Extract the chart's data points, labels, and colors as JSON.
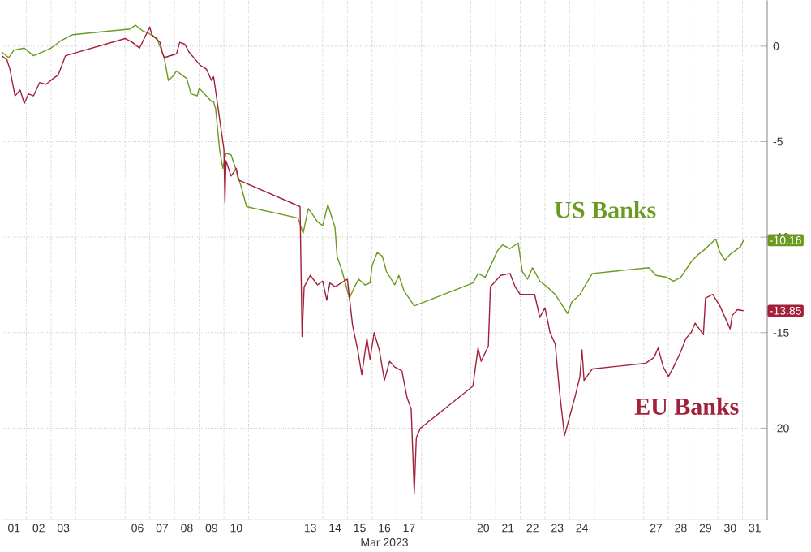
{
  "chart_data": {
    "type": "line",
    "xlabel": "Mar 2023",
    "xlim": [
      "2023-03-01T00:00",
      "2023-04-01T00:00"
    ],
    "ylim": [
      -24.8,
      2.4
    ],
    "xticks": [
      {
        "value": "2023-03-01T12:00",
        "label": "01"
      },
      {
        "value": "2023-03-02T12:00",
        "label": "02"
      },
      {
        "value": "2023-03-03T12:00",
        "label": "03"
      },
      {
        "value": "2023-03-06T12:00",
        "label": "06"
      },
      {
        "value": "2023-03-07T12:00",
        "label": "07"
      },
      {
        "value": "2023-03-08T12:00",
        "label": "08"
      },
      {
        "value": "2023-03-09T12:00",
        "label": "09"
      },
      {
        "value": "2023-03-10T12:00",
        "label": "10"
      },
      {
        "value": "2023-03-13T12:00",
        "label": "13"
      },
      {
        "value": "2023-03-14T12:00",
        "label": "14"
      },
      {
        "value": "2023-03-15T12:00",
        "label": "15"
      },
      {
        "value": "2023-03-16T12:00",
        "label": "16"
      },
      {
        "value": "2023-03-17T12:00",
        "label": "17"
      },
      {
        "value": "2023-03-20T12:00",
        "label": "20"
      },
      {
        "value": "2023-03-21T12:00",
        "label": "21"
      },
      {
        "value": "2023-03-22T12:00",
        "label": "22"
      },
      {
        "value": "2023-03-23T12:00",
        "label": "23"
      },
      {
        "value": "2023-03-24T12:00",
        "label": "24"
      },
      {
        "value": "2023-03-27T12:00",
        "label": "27"
      },
      {
        "value": "2023-03-28T12:00",
        "label": "28"
      },
      {
        "value": "2023-03-29T12:00",
        "label": "29"
      },
      {
        "value": "2023-03-30T12:00",
        "label": "30"
      },
      {
        "value": "2023-03-31T12:00",
        "label": "31"
      },
      {
        "value": "2023-03-02T00:00",
        "label": null
      },
      {
        "value": "2023-03-03T00:00",
        "label": null
      },
      {
        "value": "2023-03-04T00:00",
        "label": null
      },
      {
        "value": "2023-03-06T00:00",
        "label": null
      },
      {
        "value": "2023-03-07T00:00",
        "label": null
      },
      {
        "value": "2023-03-08T00:00",
        "label": null
      },
      {
        "value": "2023-03-09T00:00",
        "label": null
      },
      {
        "value": "2023-03-10T00:00",
        "label": null
      },
      {
        "value": "2023-03-11T00:00",
        "label": null
      },
      {
        "value": "2023-03-13T00:00",
        "label": null
      },
      {
        "value": "2023-03-14T00:00",
        "label": null
      },
      {
        "value": "2023-03-15T00:00",
        "label": null
      },
      {
        "value": "2023-03-16T00:00",
        "label": null
      },
      {
        "value": "2023-03-17T00:00",
        "label": null
      },
      {
        "value": "2023-03-18T00:00",
        "label": null
      },
      {
        "value": "2023-03-20T00:00",
        "label": null
      },
      {
        "value": "2023-03-21T00:00",
        "label": null
      },
      {
        "value": "2023-03-22T00:00",
        "label": null
      },
      {
        "value": "2023-03-23T00:00",
        "label": null
      },
      {
        "value": "2023-03-24T00:00",
        "label": null
      },
      {
        "value": "2023-03-25T00:00",
        "label": null
      },
      {
        "value": "2023-03-27T00:00",
        "label": null
      },
      {
        "value": "2023-03-28T00:00",
        "label": null
      },
      {
        "value": "2023-03-29T00:00",
        "label": null
      },
      {
        "value": "2023-03-30T00:00",
        "label": null
      },
      {
        "value": "2023-03-31T00:00",
        "label": null
      }
    ],
    "yticks": [
      0,
      -5,
      -10,
      -15,
      -20
    ],
    "grid": true,
    "series": [
      {
        "name": "US Banks",
        "color": "#6a9a1f",
        "x": [
          "2023-03-01T00:00",
          "2023-03-01T07:00",
          "2023-03-01T12:00",
          "2023-03-01T22:00",
          "2023-03-02T07:00",
          "2023-03-02T16:00",
          "2023-03-03T00:00",
          "2023-03-03T10:00",
          "2023-03-03T21:00",
          "2023-03-06T05:00",
          "2023-03-06T10:00",
          "2023-03-06T17:00",
          "2023-03-06T22:00",
          "2023-03-07T07:00",
          "2023-03-07T14:00",
          "2023-03-07T18:00",
          "2023-03-07T22:00",
          "2023-03-08T02:00",
          "2023-03-08T12:00",
          "2023-03-08T16:00",
          "2023-03-08T22:00",
          "2023-03-09T00:00",
          "2023-03-09T12:00",
          "2023-03-09T14:00",
          "2023-03-09T16:00",
          "2023-03-09T20:00",
          "2023-03-09T23:00",
          "2023-03-10T02:00",
          "2023-03-10T07:00",
          "2023-03-10T12:00",
          "2023-03-10T17:00",
          "2023-03-10T22:00",
          "2023-03-13T00:00",
          "2023-03-13T05:00",
          "2023-03-13T10:00",
          "2023-03-13T14:00",
          "2023-03-13T19:00",
          "2023-03-14T00:00",
          "2023-03-14T05:00",
          "2023-03-14T08:00",
          "2023-03-14T12:00",
          "2023-03-14T14:00",
          "2023-03-14T19:00",
          "2023-03-15T00:00",
          "2023-03-15T02:00",
          "2023-03-15T07:00",
          "2023-03-15T11:00",
          "2023-03-15T17:00",
          "2023-03-15T22:00",
          "2023-03-16T00:00",
          "2023-03-16T05:00",
          "2023-03-16T10:00",
          "2023-03-16T14:00",
          "2023-03-16T22:00",
          "2023-03-17T02:00",
          "2023-03-17T07:00",
          "2023-03-17T17:00",
          "2023-03-20T02:00",
          "2023-03-20T07:00",
          "2023-03-20T14:00",
          "2023-03-21T02:00",
          "2023-03-21T07:00",
          "2023-03-21T14:00",
          "2023-03-21T22:00",
          "2023-03-22T02:00",
          "2023-03-22T07:00",
          "2023-03-22T12:00",
          "2023-03-22T19:00",
          "2023-03-23T02:00",
          "2023-03-23T10:00",
          "2023-03-23T22:00",
          "2023-03-24T02:00",
          "2023-03-24T10:00",
          "2023-03-24T22:00",
          "2023-03-27T05:00",
          "2023-03-27T12:00",
          "2023-03-27T22:00",
          "2023-03-28T05:00",
          "2023-03-28T12:00",
          "2023-03-28T22:00",
          "2023-03-29T05:00",
          "2023-03-29T10:00",
          "2023-03-29T22:00",
          "2023-03-30T02:00",
          "2023-03-30T07:00",
          "2023-03-30T12:00",
          "2023-03-30T22:00",
          "2023-03-31T01:00"
        ],
        "values": [
          -0.3,
          -0.6,
          -0.2,
          -0.1,
          -0.5,
          -0.3,
          -0.1,
          0.3,
          0.6,
          0.9,
          1.1,
          0.8,
          0.7,
          0.4,
          -0.6,
          -1.8,
          -1.6,
          -1.3,
          -1.7,
          -2.5,
          -2.6,
          -2.2,
          -2.9,
          -2.9,
          -3.3,
          -5.5,
          -6.4,
          -5.6,
          -5.7,
          -6.5,
          -7.4,
          -8.4,
          -9.0,
          -9.8,
          -8.5,
          -8.8,
          -9.2,
          -9.4,
          -8.3,
          -8.8,
          -9.5,
          -11.0,
          -11.8,
          -12.8,
          -13.2,
          -12.6,
          -12.2,
          -12.5,
          -12.4,
          -11.5,
          -10.8,
          -11.0,
          -11.8,
          -12.5,
          -12.0,
          -12.8,
          -13.6,
          -12.4,
          -11.9,
          -12.1,
          -10.7,
          -10.4,
          -10.6,
          -10.3,
          -11.8,
          -12.2,
          -11.6,
          -12.3,
          -12.6,
          -13.0,
          -14.0,
          -13.4,
          -13.0,
          -11.9,
          -11.6,
          -12.0,
          -12.1,
          -12.3,
          -12.1,
          -11.3,
          -10.9,
          -10.7,
          -10.1,
          -10.8,
          -11.2,
          -10.9,
          -10.5,
          -10.16
        ]
      },
      {
        "name": "EU Banks",
        "color": "#a3203a",
        "x": [
          "2023-03-01T00:00",
          "2023-03-01T05:00",
          "2023-03-01T08:00",
          "2023-03-01T13:00",
          "2023-03-01T18:00",
          "2023-03-01T22:00",
          "2023-03-02T02:00",
          "2023-03-02T07:00",
          "2023-03-02T13:00",
          "2023-03-02T19:00",
          "2023-03-03T02:00",
          "2023-03-03T07:00",
          "2023-03-03T14:00",
          "2023-03-06T00:00",
          "2023-03-06T07:00",
          "2023-03-06T14:00",
          "2023-03-07T00:00",
          "2023-03-07T02:00",
          "2023-03-07T10:00",
          "2023-03-07T12:00",
          "2023-03-07T14:00",
          "2023-03-08T02:00",
          "2023-03-08T05:00",
          "2023-03-08T10:00",
          "2023-03-08T14:00",
          "2023-03-09T01:00",
          "2023-03-09T07:00",
          "2023-03-09T12:00",
          "2023-03-09T14:00",
          "2023-03-10T00:00",
          "2023-03-10T01:00",
          "2023-03-10T02:00",
          "2023-03-10T07:00",
          "2023-03-10T12:00",
          "2023-03-10T14:00",
          "2023-03-13T02:00",
          "2023-03-13T04:00",
          "2023-03-13T06:00",
          "2023-03-13T12:00",
          "2023-03-13T19:00",
          "2023-03-14T00:00",
          "2023-03-14T04:00",
          "2023-03-14T07:00",
          "2023-03-14T12:00",
          "2023-03-15T00:00",
          "2023-03-15T05:00",
          "2023-03-15T10:00",
          "2023-03-15T14:00",
          "2023-03-15T19:00",
          "2023-03-15T22:00",
          "2023-03-16T02:00",
          "2023-03-16T07:00",
          "2023-03-16T12:00",
          "2023-03-16T17:00",
          "2023-03-16T22:00",
          "2023-03-17T05:00",
          "2023-03-17T10:00",
          "2023-03-17T14:00",
          "2023-03-17T17:00",
          "2023-03-17T19:00",
          "2023-03-17T23:00",
          "2023-03-20T02:00",
          "2023-03-20T07:00",
          "2023-03-20T10:00",
          "2023-03-20T17:00",
          "2023-03-20T19:00",
          "2023-03-21T00:00",
          "2023-03-21T05:00",
          "2023-03-21T14:00",
          "2023-03-21T19:00",
          "2023-03-22T00:00",
          "2023-03-22T14:00",
          "2023-03-22T19:00",
          "2023-03-23T00:00",
          "2023-03-23T05:00",
          "2023-03-23T10:00",
          "2023-03-23T14:00",
          "2023-03-23T19:00",
          "2023-03-24T00:00",
          "2023-03-24T05:00",
          "2023-03-24T10:00",
          "2023-03-24T12:00",
          "2023-03-24T14:00",
          "2023-03-24T22:00",
          "2023-03-27T02:00",
          "2023-03-27T10:00",
          "2023-03-27T14:00",
          "2023-03-27T19:00",
          "2023-03-28T00:00",
          "2023-03-28T05:00",
          "2023-03-28T12:00",
          "2023-03-28T17:00",
          "2023-03-28T22:00",
          "2023-03-29T02:00",
          "2023-03-29T10:00",
          "2023-03-29T12:00",
          "2023-03-29T19:00",
          "2023-03-30T02:00",
          "2023-03-30T12:00",
          "2023-03-30T14:00",
          "2023-03-30T19:00",
          "2023-03-31T01:00"
        ],
        "values": [
          -0.5,
          -0.7,
          -1.2,
          -2.6,
          -2.3,
          -3.0,
          -2.5,
          -2.6,
          -1.9,
          -2.0,
          -1.7,
          -1.5,
          -0.5,
          0.4,
          0.2,
          -0.1,
          1.0,
          0.6,
          0.2,
          -0.3,
          -0.6,
          -0.4,
          0.2,
          0.1,
          -0.3,
          -1.0,
          -1.2,
          -1.8,
          -1.6,
          -5.4,
          -8.2,
          -6.0,
          -6.8,
          -6.4,
          -7.0,
          -8.4,
          -15.2,
          -12.6,
          -12.0,
          -12.5,
          -12.3,
          -13.3,
          -12.4,
          -12.6,
          -12.2,
          -14.6,
          -15.9,
          -17.2,
          -15.3,
          -16.4,
          -15.0,
          -15.9,
          -17.5,
          -16.5,
          -16.8,
          -17.0,
          -18.4,
          -19.0,
          -23.4,
          -20.5,
          -20.0,
          -17.8,
          -15.8,
          -16.5,
          -15.7,
          -12.6,
          -12.3,
          -12.0,
          -11.9,
          -12.6,
          -13.0,
          -13.0,
          -14.2,
          -13.7,
          -15.0,
          -15.6,
          -18.0,
          -20.4,
          -19.4,
          -18.4,
          -17.3,
          -15.9,
          -17.5,
          -16.9,
          -16.6,
          -16.3,
          -15.8,
          -16.8,
          -17.3,
          -16.8,
          -16.0,
          -15.3,
          -15.0,
          -14.5,
          -15.1,
          -13.2,
          -13.0,
          -13.6,
          -14.8,
          -14.1,
          -13.8,
          -13.85
        ]
      }
    ],
    "annotations": [
      "-10.16",
      "-13.85"
    ]
  }
}
